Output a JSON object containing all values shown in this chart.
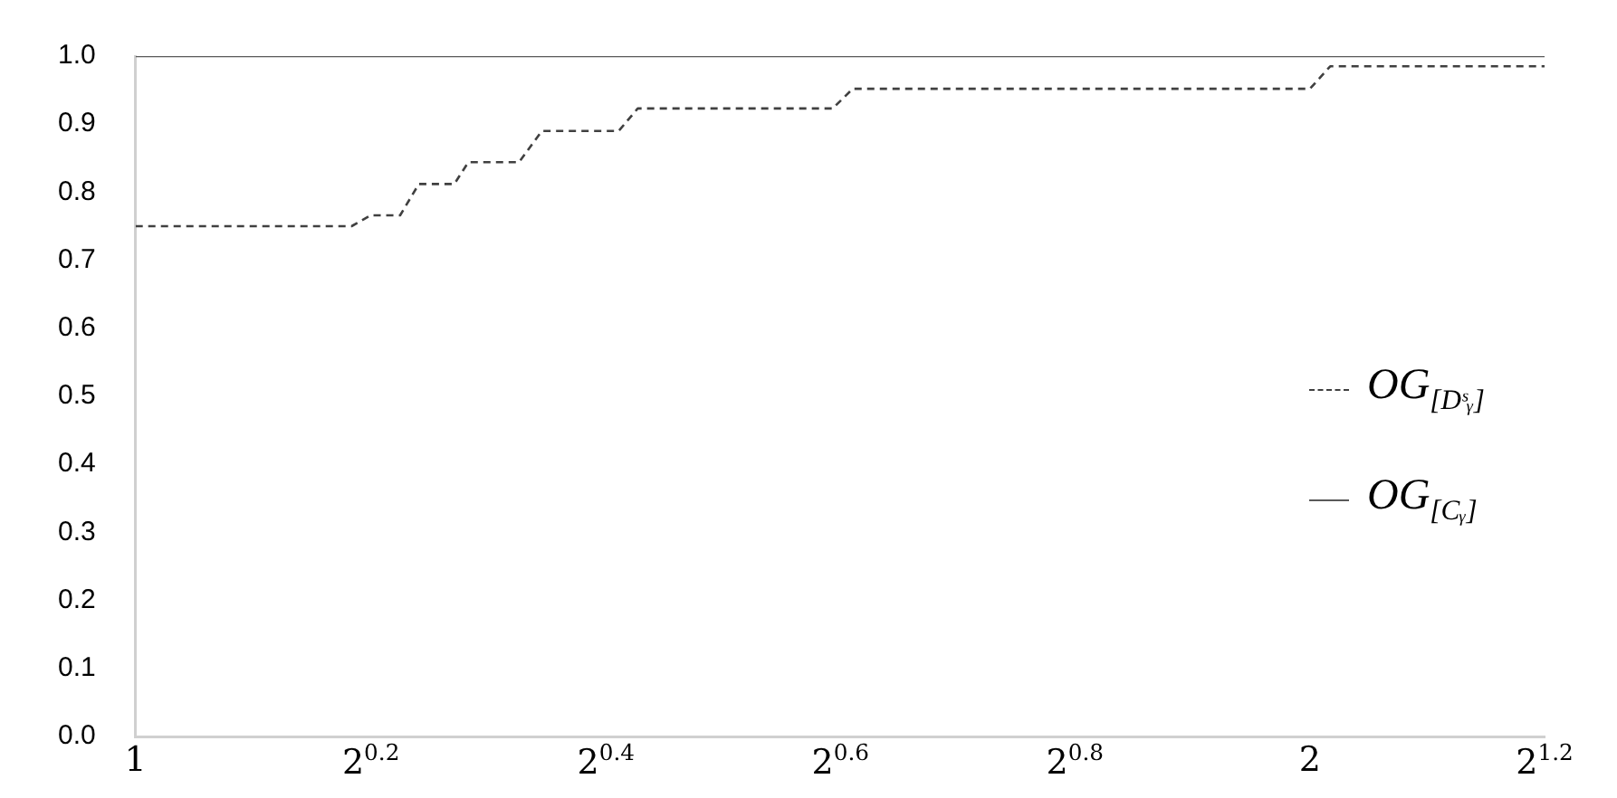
{
  "chart_data": {
    "type": "line",
    "xlim": [
      1,
      2.297
    ],
    "log": "x",
    "xticks": [
      1,
      {
        "value": 1.149,
        "label": "2$^{0.2}$"
      },
      {
        "value": 1.32,
        "label": "2$^{0.4}$"
      },
      {
        "value": 1.516,
        "label": "2$^{0.6}$"
      },
      {
        "value": 1.741,
        "label": "2$^{0.8}$"
      },
      2,
      {
        "value": 2.297,
        "label": "2$^{1.2}$"
      }
    ],
    "ylim": [
      0,
      1
    ],
    "yticks": [
      {
        "value": 0,
        "label": "0.0"
      },
      {
        "value": 0.1,
        "label": "0.1"
      },
      {
        "value": 0.2,
        "label": "0.2"
      },
      {
        "value": 0.3,
        "label": "0.3"
      },
      {
        "value": 0.4,
        "label": "0.4"
      },
      {
        "value": 0.5,
        "label": "0.5"
      },
      {
        "value": 0.6,
        "label": "0.6"
      },
      {
        "value": 0.7,
        "label": "0.7"
      },
      {
        "value": 0.8,
        "label": "0.8"
      },
      {
        "value": 0.9,
        "label": "0.9"
      },
      {
        "value": 1,
        "label": "1.0"
      }
    ],
    "grid": false,
    "legend": "right",
    "marker": "none",
    "series": [
      {
        "name": "OG$_{[Dˢᵧ]}$",
        "color": "#404040",
        "line_style": "dashed",
        "x": [
          1,
          1.136,
          1.149,
          1.169,
          1.182,
          1.207,
          1.217,
          1.254,
          1.271,
          1.33,
          1.345,
          1.509,
          1.527,
          2,
          2.024,
          2.297
        ],
        "values": [
          0.75,
          0.75,
          0.766,
          0.766,
          0.812,
          0.812,
          0.844,
          0.844,
          0.89,
          0.89,
          0.923,
          0.923,
          0.952,
          0.952,
          0.985,
          0.985
        ]
      },
      {
        "name": "OG$_{[Cᵧ]}$",
        "color": "#595959",
        "line_style": "solid",
        "x": [
          1,
          2.297
        ],
        "values": [
          1,
          1
        ]
      }
    ]
  }
}
